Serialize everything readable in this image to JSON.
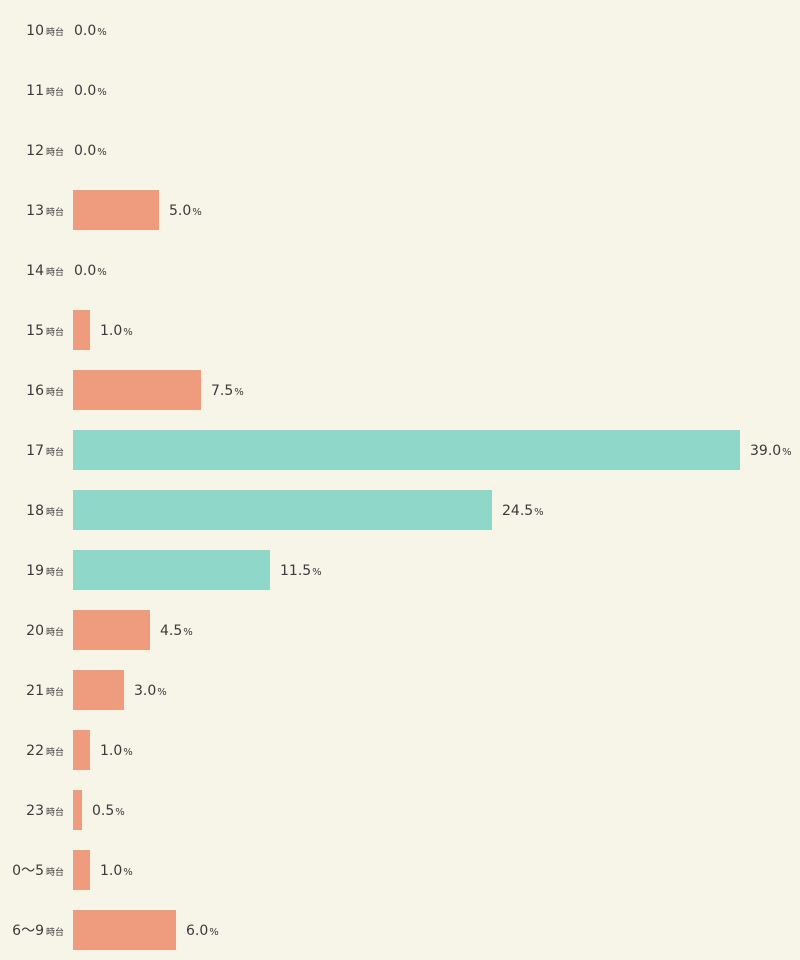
{
  "chart_data": {
    "type": "bar",
    "orientation": "horizontal",
    "categories": [
      "10",
      "11",
      "12",
      "13",
      "14",
      "15",
      "16",
      "17",
      "18",
      "19",
      "20",
      "21",
      "22",
      "23",
      "0〜5",
      "6〜9"
    ],
    "category_suffix": "時台",
    "values": [
      0.0,
      0.0,
      0.0,
      5.0,
      0.0,
      1.0,
      7.5,
      39.0,
      24.5,
      11.5,
      4.5,
      3.0,
      1.0,
      0.5,
      1.0,
      6.0
    ],
    "value_suffix": "%",
    "highlighted_categories": [
      "17",
      "18",
      "19"
    ],
    "xlim": [
      0,
      39.0
    ],
    "grid": false,
    "colors": {
      "default_bar": "#ee9b7e",
      "highlight_bar": "#8fd8c9",
      "background": "#f7f4e8",
      "text": "#3a3a3a"
    }
  }
}
